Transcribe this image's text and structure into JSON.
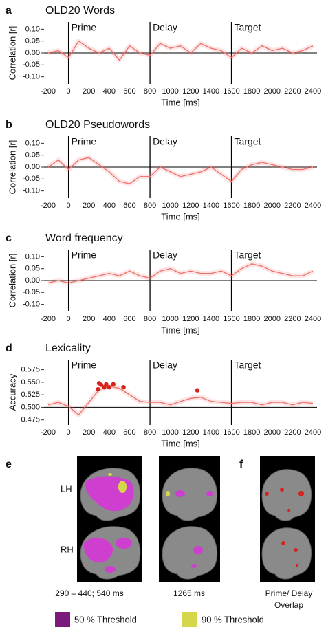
{
  "chart_data": [
    {
      "type": "line",
      "panel_label": "a",
      "title": "OLD20 Words",
      "x_label": "Time [ms]",
      "y_label": "Correlation [r]",
      "x": [
        -200,
        -100,
        0,
        100,
        200,
        300,
        400,
        500,
        600,
        700,
        800,
        900,
        1000,
        1100,
        1200,
        1300,
        1400,
        1500,
        1600,
        1700,
        1800,
        1900,
        2000,
        2100,
        2200,
        2300,
        2400
      ],
      "series": [
        {
          "color": "#ec6e6a",
          "values": [
            0.0,
            0.01,
            -0.02,
            0.05,
            0.02,
            0.0,
            0.02,
            -0.03,
            0.03,
            0.0,
            -0.01,
            0.04,
            0.02,
            0.03,
            0.0,
            0.04,
            0.02,
            0.01,
            -0.02,
            0.02,
            0.0,
            0.03,
            0.01,
            0.02,
            0.0,
            0.01,
            0.03
          ]
        }
      ],
      "baseline": 0,
      "annotations": [
        {
          "x": 0,
          "label": "Prime"
        },
        {
          "x": 800,
          "label": "Delay"
        },
        {
          "x": 1600,
          "label": "Target"
        }
      ],
      "xlim": [
        -200,
        2400
      ],
      "xticks": [
        -200,
        0,
        200,
        400,
        600,
        800,
        1000,
        1200,
        1400,
        1600,
        1800,
        2000,
        2200,
        2400
      ],
      "ylim": [
        -0.13,
        0.13
      ],
      "yticks": [
        {
          "value": -0.1,
          "label": "-0.10"
        },
        {
          "value": -0.05,
          "label": "-0.05"
        },
        {
          "value": 0,
          "label": "0.00"
        },
        {
          "value": 0.05,
          "label": "0.05"
        },
        {
          "value": 0.1,
          "label": "0.10"
        }
      ]
    },
    {
      "type": "line",
      "panel_label": "b",
      "title": "OLD20 Pseudowords",
      "x_label": "Time [ms]",
      "y_label": "Correlation [r]",
      "x": [
        -200,
        -100,
        0,
        100,
        200,
        300,
        400,
        500,
        600,
        700,
        800,
        900,
        1000,
        1100,
        1200,
        1300,
        1400,
        1500,
        1600,
        1700,
        1800,
        1900,
        2000,
        2100,
        2200,
        2300,
        2400
      ],
      "series": [
        {
          "color": "#ec6e6a",
          "values": [
            0.0,
            0.03,
            -0.01,
            0.03,
            0.04,
            0.01,
            -0.02,
            -0.06,
            -0.07,
            -0.04,
            -0.04,
            0.0,
            -0.02,
            -0.04,
            -0.03,
            -0.02,
            0.0,
            -0.03,
            -0.06,
            -0.01,
            0.01,
            0.02,
            0.01,
            0.0,
            -0.01,
            -0.01,
            0.0
          ]
        }
      ],
      "baseline": 0,
      "annotations": [
        {
          "x": 0,
          "label": "Prime"
        },
        {
          "x": 800,
          "label": "Delay"
        },
        {
          "x": 1600,
          "label": "Target"
        }
      ],
      "xlim": [
        -200,
        2400
      ],
      "xticks": [
        -200,
        0,
        200,
        400,
        600,
        800,
        1000,
        1200,
        1400,
        1600,
        1800,
        2000,
        2200,
        2400
      ],
      "ylim": [
        -0.13,
        0.13
      ],
      "yticks": [
        {
          "value": -0.1,
          "label": "-0.10"
        },
        {
          "value": -0.05,
          "label": "-0.05"
        },
        {
          "value": 0,
          "label": "0.00"
        },
        {
          "value": 0.05,
          "label": "0.05"
        },
        {
          "value": 0.1,
          "label": "0.10"
        }
      ]
    },
    {
      "type": "line",
      "panel_label": "c",
      "title": "Word frequency",
      "x_label": "Time [ms]",
      "y_label": "Correlation [r]",
      "x": [
        -200,
        -100,
        0,
        100,
        200,
        300,
        400,
        500,
        600,
        700,
        800,
        900,
        1000,
        1100,
        1200,
        1300,
        1400,
        1500,
        1600,
        1700,
        1800,
        1900,
        2000,
        2100,
        2200,
        2300,
        2400
      ],
      "series": [
        {
          "color": "#ec6e6a",
          "values": [
            -0.01,
            0.0,
            -0.01,
            0.0,
            0.01,
            0.02,
            0.03,
            0.02,
            0.04,
            0.02,
            0.01,
            0.04,
            0.05,
            0.03,
            0.04,
            0.03,
            0.03,
            0.04,
            0.02,
            0.05,
            0.07,
            0.06,
            0.04,
            0.03,
            0.02,
            0.02,
            0.04
          ]
        }
      ],
      "baseline": 0,
      "annotations": [
        {
          "x": 0,
          "label": "Prime"
        },
        {
          "x": 800,
          "label": "Delay"
        },
        {
          "x": 1600,
          "label": "Target"
        }
      ],
      "xlim": [
        -200,
        2400
      ],
      "xticks": [
        -200,
        0,
        200,
        400,
        600,
        800,
        1000,
        1200,
        1400,
        1600,
        1800,
        2000,
        2200,
        2400
      ],
      "ylim": [
        -0.13,
        0.13
      ],
      "yticks": [
        {
          "value": -0.1,
          "label": "-0.10"
        },
        {
          "value": -0.05,
          "label": "-0.05"
        },
        {
          "value": 0,
          "label": "0.00"
        },
        {
          "value": 0.05,
          "label": "0.05"
        },
        {
          "value": 0.1,
          "label": "0.10"
        }
      ]
    },
    {
      "type": "line",
      "panel_label": "d",
      "title": "Lexicality",
      "x_label": "Time [ms]",
      "y_label": "Accuracy",
      "x": [
        -200,
        -100,
        0,
        100,
        200,
        300,
        400,
        500,
        600,
        700,
        800,
        900,
        1000,
        1100,
        1200,
        1300,
        1400,
        1500,
        1600,
        1700,
        1800,
        1900,
        2000,
        2100,
        2200,
        2300,
        2400
      ],
      "series": [
        {
          "color": "#ec6e6a",
          "values": [
            0.505,
            0.51,
            0.502,
            0.485,
            0.51,
            0.535,
            0.542,
            0.538,
            0.525,
            0.512,
            0.51,
            0.51,
            0.505,
            0.512,
            0.518,
            0.52,
            0.512,
            0.51,
            0.508,
            0.51,
            0.51,
            0.505,
            0.51,
            0.51,
            0.505,
            0.51,
            0.508
          ]
        }
      ],
      "points": {
        "color": "#d8221c",
        "x": [
          290,
          300,
          320,
          350,
          370,
          400,
          440,
          540,
          1265
        ],
        "values": [
          0.536,
          0.548,
          0.545,
          0.54,
          0.546,
          0.54,
          0.546,
          0.54,
          0.534
        ],
        "errors": [
          0.004,
          0.004,
          0.004,
          0.004,
          0.004,
          0.004,
          0.004,
          0.004,
          0.004
        ]
      },
      "baseline": 0.5,
      "annotations": [
        {
          "x": 0,
          "label": "Prime"
        },
        {
          "x": 800,
          "label": "Delay"
        },
        {
          "x": 1600,
          "label": "Target"
        }
      ],
      "xlim": [
        -200,
        2400
      ],
      "xticks": [
        -200,
        0,
        200,
        400,
        600,
        800,
        1000,
        1200,
        1400,
        1600,
        1800,
        2000,
        2200,
        2400
      ],
      "ylim": [
        0.465,
        0.595
      ],
      "yticks": [
        0.475,
        {
          "value": 0.5,
          "label": "0.500"
        },
        0.525,
        {
          "value": 0.55,
          "label": "0.550"
        },
        0.575
      ]
    }
  ],
  "brain_figure": {
    "panel_e": "e",
    "panel_f": "f",
    "hemispheres": [
      "LH",
      "RH"
    ],
    "captions": [
      "290 – 440; 540 ms",
      "1265 ms"
    ],
    "overlap_caption": [
      "Prime/ Delay",
      "Overlap"
    ],
    "legend": [
      {
        "label": "50 % Threshold",
        "color": "#7a1a7a"
      },
      {
        "label": "90 % Threshold",
        "color": "#d6d64a"
      }
    ]
  }
}
